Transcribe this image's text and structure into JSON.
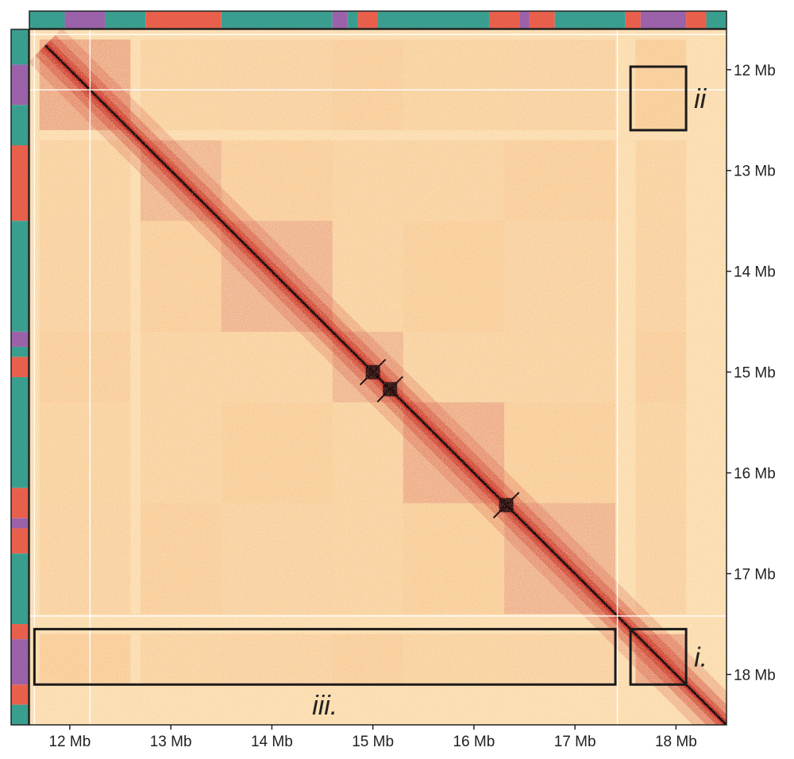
{
  "chart_data": {
    "type": "heatmap",
    "title": "",
    "xlabel": "",
    "ylabel": "",
    "unit": "Mb",
    "xlim": [
      11.6,
      18.5
    ],
    "ylim": [
      11.6,
      18.5
    ],
    "x_ticks": [
      {
        "value": 12,
        "label": "12 Mb"
      },
      {
        "value": 13,
        "label": "13 Mb"
      },
      {
        "value": 14,
        "label": "14 Mb"
      },
      {
        "value": 15,
        "label": "15 Mb"
      },
      {
        "value": 16,
        "label": "16 Mb"
      },
      {
        "value": 17,
        "label": "17 Mb"
      },
      {
        "value": 18,
        "label": "18 Mb"
      }
    ],
    "y_ticks": [
      {
        "value": 12,
        "label": "12 Mb"
      },
      {
        "value": 13,
        "label": "13 Mb"
      },
      {
        "value": 14,
        "label": "14 Mb"
      },
      {
        "value": 15,
        "label": "15 Mb"
      },
      {
        "value": 16,
        "label": "16 Mb"
      },
      {
        "value": 17,
        "label": "17 Mb"
      },
      {
        "value": 18,
        "label": "18 Mb"
      }
    ],
    "colors": {
      "low": "#fff6e4",
      "mid": "#f2a05a",
      "high": "#c8281c",
      "max": "#1a0606",
      "track_teal": "#3a9e8f",
      "track_purple": "#9b62a9",
      "track_salmon": "#e8604c"
    },
    "domains": [
      {
        "start": 11.7,
        "end": 12.6,
        "strength": 0.75
      },
      {
        "start": 12.7,
        "end": 13.5,
        "strength": 0.55
      },
      {
        "start": 13.5,
        "end": 14.6,
        "strength": 0.6
      },
      {
        "start": 14.6,
        "end": 15.3,
        "strength": 0.55
      },
      {
        "start": 15.3,
        "end": 16.3,
        "strength": 0.7
      },
      {
        "start": 16.3,
        "end": 17.4,
        "strength": 0.6
      },
      {
        "start": 17.6,
        "end": 18.1,
        "strength": 0.8
      }
    ],
    "loops": [
      {
        "x": 15.0,
        "y": 15.0
      },
      {
        "x": 15.17,
        "y": 15.17
      },
      {
        "x": 16.32,
        "y": 16.32
      }
    ],
    "compartment_track": [
      {
        "start": 11.6,
        "end": 11.95,
        "state": "teal"
      },
      {
        "start": 11.95,
        "end": 12.35,
        "state": "purple"
      },
      {
        "start": 12.35,
        "end": 12.75,
        "state": "teal"
      },
      {
        "start": 12.75,
        "end": 13.5,
        "state": "salmon"
      },
      {
        "start": 13.5,
        "end": 14.6,
        "state": "teal"
      },
      {
        "start": 14.6,
        "end": 14.75,
        "state": "purple"
      },
      {
        "start": 14.75,
        "end": 14.85,
        "state": "teal"
      },
      {
        "start": 14.85,
        "end": 15.05,
        "state": "salmon"
      },
      {
        "start": 15.05,
        "end": 16.15,
        "state": "teal"
      },
      {
        "start": 16.15,
        "end": 16.45,
        "state": "salmon"
      },
      {
        "start": 16.45,
        "end": 16.55,
        "state": "purple"
      },
      {
        "start": 16.55,
        "end": 16.8,
        "state": "salmon"
      },
      {
        "start": 16.8,
        "end": 17.5,
        "state": "teal"
      },
      {
        "start": 17.5,
        "end": 17.65,
        "state": "salmon"
      },
      {
        "start": 17.65,
        "end": 18.1,
        "state": "purple"
      },
      {
        "start": 18.1,
        "end": 18.3,
        "state": "salmon"
      },
      {
        "start": 18.3,
        "end": 18.5,
        "state": "teal"
      }
    ],
    "annotations": [
      {
        "label": "i.",
        "x_range": [
          17.55,
          18.1
        ],
        "y_range": [
          17.55,
          18.1
        ],
        "label_side": "right"
      },
      {
        "label": "ii",
        "x_range": [
          17.55,
          18.1
        ],
        "y_range": [
          11.97,
          12.6
        ],
        "label_side": "right"
      },
      {
        "label": "iii.",
        "x_range": [
          11.65,
          17.4
        ],
        "y_range": [
          17.55,
          18.1
        ],
        "label_side": "below"
      }
    ]
  }
}
